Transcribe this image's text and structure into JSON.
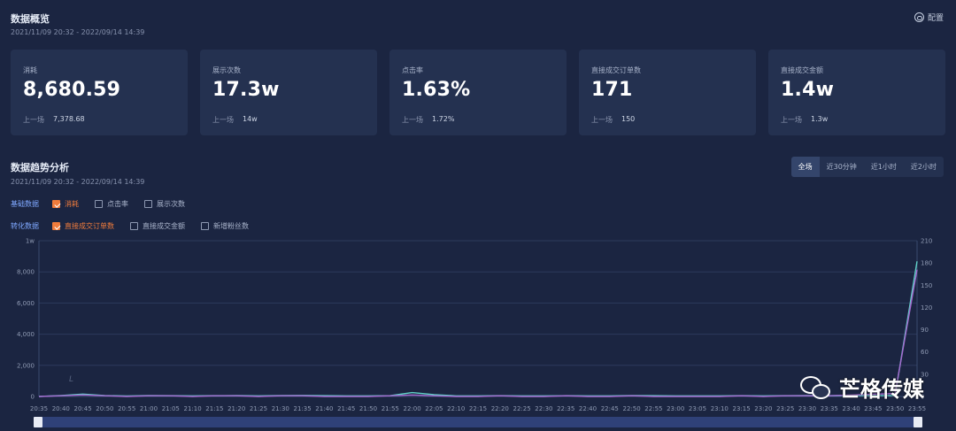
{
  "overview": {
    "title": "数据概览",
    "range": "2021/11/09 20:32 - 2022/09/14 14:39",
    "config_label": "配置"
  },
  "cards": [
    {
      "label": "消耗",
      "value": "8,680.59",
      "prev_label": "上一场",
      "prev_value": "7,378.68"
    },
    {
      "label": "展示次数",
      "value": "17.3w",
      "prev_label": "上一场",
      "prev_value": "14w"
    },
    {
      "label": "点击率",
      "value": "1.63%",
      "prev_label": "上一场",
      "prev_value": "1.72%"
    },
    {
      "label": "直接成交订单数",
      "value": "171",
      "prev_label": "上一场",
      "prev_value": "150"
    },
    {
      "label": "直接成交金额",
      "value": "1.4w",
      "prev_label": "上一场",
      "prev_value": "1.3w"
    }
  ],
  "trend": {
    "title": "数据趋势分析",
    "range": "2021/11/09 20:32 - 2022/09/14 14:39",
    "range_tabs": [
      "全场",
      "近30分钟",
      "近1小时",
      "近2小时"
    ],
    "active_tab": 0
  },
  "filters": {
    "basic": {
      "label": "基础数据",
      "options": [
        {
          "text": "消耗",
          "checked": true
        },
        {
          "text": "点击率",
          "checked": false
        },
        {
          "text": "展示次数",
          "checked": false
        }
      ]
    },
    "conversion": {
      "label": "转化数据",
      "options": [
        {
          "text": "直接成交订单数",
          "checked": true
        },
        {
          "text": "直接成交金额",
          "checked": false
        },
        {
          "text": "新增粉丝数",
          "checked": false
        }
      ]
    }
  },
  "chart_data": {
    "type": "line",
    "x": [
      "20:35",
      "20:40",
      "20:45",
      "20:50",
      "20:55",
      "21:00",
      "21:05",
      "21:10",
      "21:15",
      "21:20",
      "21:25",
      "21:30",
      "21:35",
      "21:40",
      "21:45",
      "21:50",
      "21:55",
      "22:00",
      "22:05",
      "22:10",
      "22:15",
      "22:20",
      "22:25",
      "22:30",
      "22:35",
      "22:40",
      "22:45",
      "22:50",
      "22:55",
      "23:00",
      "23:05",
      "23:10",
      "23:15",
      "23:20",
      "23:25",
      "23:30",
      "23:35",
      "23:40",
      "23:45",
      "23:50",
      "23:55"
    ],
    "left_axis": {
      "ticks": [
        "0",
        "2,000",
        "4,000",
        "6,000",
        "8,000",
        "1w"
      ],
      "min": 0,
      "max": 10000
    },
    "right_axis": {
      "ticks": [
        "0",
        "30",
        "60",
        "90",
        "120",
        "150",
        "180",
        "210"
      ],
      "min": 0,
      "max": 210
    },
    "series": [
      {
        "name": "消耗",
        "axis": "left",
        "color": "#5fd0c6",
        "values": [
          0,
          60,
          150,
          60,
          30,
          60,
          50,
          40,
          50,
          60,
          40,
          60,
          70,
          50,
          40,
          40,
          50,
          250,
          120,
          40,
          40,
          50,
          40,
          40,
          50,
          40,
          40,
          60,
          50,
          40,
          40,
          40,
          50,
          40,
          50,
          60,
          50,
          60,
          60,
          60,
          8680
        ]
      },
      {
        "name": "直接成交订单数",
        "axis": "right",
        "color": "#a56ad0",
        "values": [
          0,
          1,
          2,
          1,
          0,
          1,
          1,
          0,
          1,
          1,
          0,
          1,
          1,
          0,
          0,
          0,
          1,
          2,
          1,
          0,
          0,
          1,
          0,
          0,
          1,
          0,
          0,
          1,
          0,
          0,
          0,
          0,
          1,
          0,
          1,
          1,
          1,
          2,
          3,
          4,
          171
        ]
      }
    ],
    "grid": true
  },
  "watermark": {
    "text": "芒格传媒",
    "icon": "wechat-icon"
  }
}
